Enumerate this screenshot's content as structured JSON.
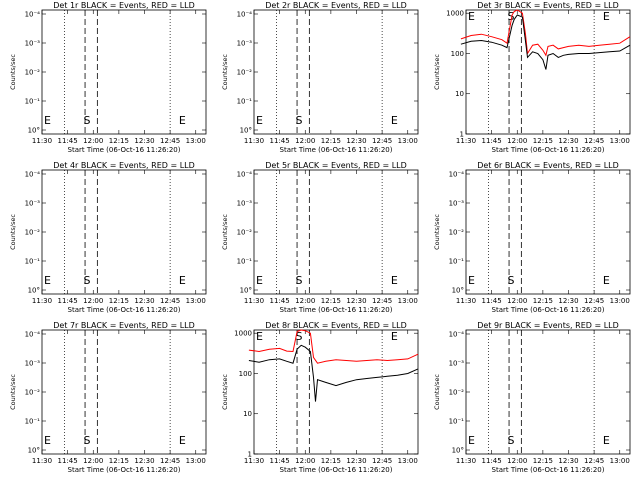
{
  "chart_data": [
    {
      "id": "1r",
      "type": "line",
      "title": "Det 1r BLACK = Events, RED = LLD",
      "ylabel": "Counts/sec",
      "xlabel": "Start Time (06-Oct-16 11:26:20)",
      "yscale": "log",
      "y_ticks": [
        "10°",
        "10⁻¹",
        "10⁻²",
        "10⁻³",
        "10⁻⁴"
      ],
      "x_ticks": [
        "11:30",
        "11:45",
        "12:00",
        "12:15",
        "12:30",
        "12:45",
        "13:00"
      ],
      "markers": {
        "S_label": "S",
        "E_label": "E",
        "S_x": 11.92,
        "E_x": 12.83
      },
      "series": []
    },
    {
      "id": "2r",
      "type": "line",
      "title": "Det 2r BLACK = Events, RED = LLD",
      "ylabel": "Counts/sec",
      "xlabel": "Start Time (06-Oct-16 11:26:20)",
      "yscale": "log",
      "y_ticks": [
        "10°",
        "10⁻¹",
        "10⁻²",
        "10⁻³",
        "10⁻⁴"
      ],
      "x_ticks": [
        "11:30",
        "11:45",
        "12:00",
        "12:15",
        "12:30",
        "12:45",
        "13:00"
      ],
      "markers": {
        "S_label": "S",
        "E_label": "E",
        "S_x": 11.92,
        "E_x": 12.83
      },
      "series": []
    },
    {
      "id": "3r",
      "type": "line",
      "title": "Det 3r BLACK = Events, RED = LLD",
      "ylabel": "Counts/sec",
      "xlabel": "Start Time (06-Oct-16 11:26:20)",
      "yscale": "log",
      "y_ticks": [
        "1",
        "10",
        "100",
        "1000"
      ],
      "x_ticks": [
        "11:30",
        "11:45",
        "12:00",
        "12:15",
        "12:30",
        "12:45",
        "13:00"
      ],
      "markers": {
        "S_label": "S",
        "E_label": "E",
        "S_x": 11.92,
        "E_x": 12.83
      },
      "series": [
        {
          "color": "#ff0000",
          "x": [
            11.45,
            11.55,
            11.65,
            11.75,
            11.85,
            11.9,
            11.95,
            11.97,
            12.0,
            12.05,
            12.08,
            12.1,
            12.15,
            12.2,
            12.25,
            12.28,
            12.3,
            12.35,
            12.4,
            12.45,
            12.5,
            12.6,
            12.7,
            12.8,
            12.9,
            13.0,
            13.1
          ],
          "y": [
            230,
            280,
            300,
            260,
            220,
            180,
            900,
            1100,
            1200,
            1000,
            300,
            100,
            160,
            170,
            120,
            90,
            150,
            160,
            130,
            140,
            150,
            160,
            150,
            160,
            170,
            180,
            260
          ]
        },
        {
          "color": "#000000",
          "x": [
            11.45,
            11.55,
            11.65,
            11.75,
            11.85,
            11.9,
            11.95,
            11.97,
            12.0,
            12.05,
            12.08,
            12.1,
            12.15,
            12.2,
            12.25,
            12.28,
            12.3,
            12.35,
            12.4,
            12.45,
            12.5,
            12.6,
            12.7,
            12.8,
            12.9,
            13.0,
            13.1
          ],
          "y": [
            170,
            200,
            210,
            190,
            160,
            140,
            500,
            700,
            900,
            800,
            200,
            80,
            110,
            100,
            70,
            40,
            90,
            100,
            80,
            90,
            95,
            100,
            100,
            105,
            110,
            115,
            160
          ]
        }
      ]
    },
    {
      "id": "4r",
      "type": "line",
      "title": "Det 4r BLACK = Events, RED = LLD",
      "ylabel": "Counts/sec",
      "xlabel": "Start Time (06-Oct-16 11:26:20)",
      "yscale": "log",
      "y_ticks": [
        "10°",
        "10⁻¹",
        "10⁻²",
        "10⁻³",
        "10⁻⁴"
      ],
      "x_ticks": [
        "11:30",
        "11:45",
        "12:00",
        "12:15",
        "12:30",
        "12:45",
        "13:00"
      ],
      "markers": {
        "S_label": "S",
        "E_label": "E",
        "S_x": 11.92,
        "E_x": 12.83
      },
      "series": []
    },
    {
      "id": "5r",
      "type": "line",
      "title": "Det 5r BLACK = Events, RED = LLD",
      "ylabel": "Counts/sec",
      "xlabel": "Start Time (06-Oct-16 11:26:20)",
      "yscale": "log",
      "y_ticks": [
        "10°",
        "10⁻¹",
        "10⁻²",
        "10⁻³",
        "10⁻⁴"
      ],
      "x_ticks": [
        "11:30",
        "11:45",
        "12:00",
        "12:15",
        "12:30",
        "12:45",
        "13:00"
      ],
      "markers": {
        "S_label": "S",
        "E_label": "E",
        "S_x": 11.92,
        "E_x": 12.83
      },
      "series": []
    },
    {
      "id": "6r",
      "type": "line",
      "title": "Det 6r BLACK = Events, RED = LLD",
      "ylabel": "Counts/sec",
      "xlabel": "Start Time (06-Oct-16 11:26:20)",
      "yscale": "log",
      "y_ticks": [
        "10°",
        "10⁻¹",
        "10⁻²",
        "10⁻³",
        "10⁻⁴"
      ],
      "x_ticks": [
        "11:30",
        "11:45",
        "12:00",
        "12:15",
        "12:30",
        "12:45",
        "13:00"
      ],
      "markers": {
        "S_label": "S",
        "E_label": "E",
        "S_x": 11.92,
        "E_x": 12.83
      },
      "series": []
    },
    {
      "id": "7r",
      "type": "line",
      "title": "Det 7r BLACK = Events, RED = LLD",
      "ylabel": "Counts/sec",
      "xlabel": "Start Time (06-Oct-16 11:26:20)",
      "yscale": "log",
      "y_ticks": [
        "10°",
        "10⁻¹",
        "10⁻²",
        "10⁻³",
        "10⁻⁴"
      ],
      "x_ticks": [
        "11:30",
        "11:45",
        "12:00",
        "12:15",
        "12:30",
        "12:45",
        "13:00"
      ],
      "markers": {
        "S_label": "S",
        "E_label": "E",
        "S_x": 11.92,
        "E_x": 12.83
      },
      "series": []
    },
    {
      "id": "8r",
      "type": "line",
      "title": "Det 8r BLACK = Events, RED = LLD",
      "ylabel": "Counts/sec",
      "xlabel": "Start Time (06-Oct-16 11:26:20)",
      "yscale": "log",
      "y_ticks": [
        "1",
        "10",
        "100",
        "1000"
      ],
      "x_ticks": [
        "11:30",
        "11:45",
        "12:00",
        "12:15",
        "12:30",
        "12:45",
        "13:00"
      ],
      "markers": {
        "S_label": "S",
        "E_label": "E",
        "S_x": 11.92,
        "E_x": 12.83
      },
      "series": [
        {
          "color": "#ff0000",
          "x": [
            11.45,
            11.55,
            11.65,
            11.75,
            11.82,
            11.88,
            11.92,
            11.96,
            12.0,
            12.05,
            12.08,
            12.12,
            12.2,
            12.3,
            12.4,
            12.5,
            12.6,
            12.7,
            12.8,
            12.9,
            13.0,
            13.1
          ],
          "y": [
            380,
            350,
            400,
            420,
            360,
            350,
            1100,
            1200,
            1150,
            1000,
            250,
            180,
            200,
            220,
            210,
            200,
            210,
            220,
            210,
            220,
            230,
            300
          ]
        },
        {
          "color": "#000000",
          "x": [
            11.45,
            11.55,
            11.65,
            11.75,
            11.82,
            11.88,
            11.92,
            11.96,
            12.0,
            12.05,
            12.08,
            12.1,
            12.12,
            12.2,
            12.3,
            12.4,
            12.5,
            12.6,
            12.7,
            12.8,
            12.9,
            13.0,
            13.1
          ],
          "y": [
            210,
            190,
            220,
            230,
            200,
            180,
            400,
            500,
            450,
            350,
            80,
            20,
            70,
            60,
            50,
            60,
            70,
            75,
            80,
            85,
            90,
            100,
            130
          ]
        }
      ]
    },
    {
      "id": "9r",
      "type": "line",
      "title": "Det 9r BLACK = Events, RED = LLD",
      "ylabel": "Counts/sec",
      "xlabel": "Start Time (06-Oct-16 11:26:20)",
      "yscale": "log",
      "y_ticks": [
        "10°",
        "10⁻¹",
        "10⁻²",
        "10⁻³",
        "10⁻⁴"
      ],
      "x_ticks": [
        "11:30",
        "11:45",
        "12:00",
        "12:15",
        "12:30",
        "12:45",
        "13:00"
      ],
      "markers": {
        "S_label": "S",
        "E_label": "E",
        "S_x": 11.92,
        "E_x": 12.83
      },
      "series": []
    }
  ]
}
